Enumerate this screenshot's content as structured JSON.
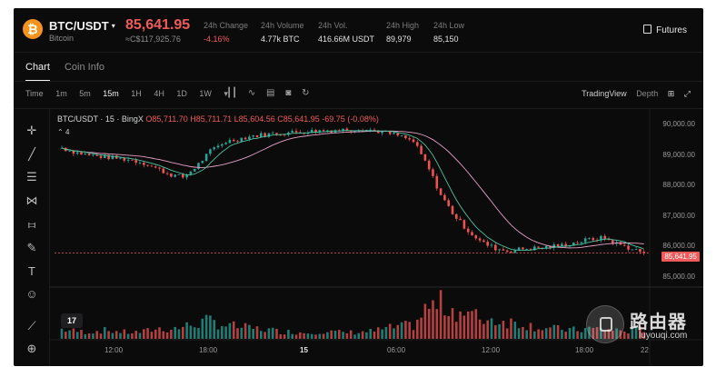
{
  "header": {
    "coin_icon": "bitcoin-icon",
    "coin_symbol": "₿",
    "pair": "BTC/USDT",
    "pair_caret": "▾",
    "pair_name": "Bitcoin",
    "price": "85,641.95",
    "price_cny": "≈C$117,925.76",
    "stats": [
      {
        "label": "24h Change",
        "value": "-4.16%",
        "negative": true
      },
      {
        "label": "24h Volume",
        "value": "4.77k BTC",
        "negative": false
      },
      {
        "label": "24h Vol.",
        "value": "416.66M USDT",
        "negative": false
      },
      {
        "label": "24h High",
        "value": "89,979",
        "negative": false
      },
      {
        "label": "24h Low",
        "value": "85,150",
        "negative": false
      }
    ],
    "futures_label": "Futures"
  },
  "tabs": [
    {
      "label": "Chart",
      "active": true
    },
    {
      "label": "Coin Info",
      "active": false
    }
  ],
  "toolbar": {
    "intervals": [
      "Time",
      "1m",
      "5m",
      "15m",
      "1H",
      "4H",
      "1D",
      "1W",
      "▾"
    ],
    "active_interval": "15m",
    "tradingview_label": "TradingView",
    "depth_label": "Depth"
  },
  "chart_data": {
    "type": "candlestick",
    "legend": {
      "symbol": "BTC/USDT · 15 · BingX",
      "open": "O85,711.70",
      "high": "H85,711.71",
      "low": "L85,604.56",
      "close": "C85,641.95",
      "change": "-69.75 (-0.08%)"
    },
    "indicator_label": "4",
    "y_ticks": [
      "90,000.00",
      "89,000.00",
      "88,000.00",
      "87,000.00",
      "86,000.00",
      "85,000.00"
    ],
    "y_values": [
      90000,
      89000,
      88000,
      87000,
      86000,
      85000
    ],
    "last_price": "85,641.95",
    "x_ticks": [
      {
        "label": "12:00",
        "bold": false
      },
      {
        "label": "18:00",
        "bold": false
      },
      {
        "label": "15",
        "bold": true
      },
      {
        "label": "06:00",
        "bold": false
      },
      {
        "label": "12:00",
        "bold": false
      },
      {
        "label": "18:00",
        "bold": false
      },
      {
        "label": "22",
        "bold": false
      }
    ],
    "price_path": [
      89200,
      89050,
      88950,
      88900,
      88850,
      88800,
      88700,
      88500,
      88300,
      88200,
      88600,
      89100,
      89400,
      89500,
      89600,
      89650,
      89700,
      89720,
      89750,
      89780,
      89800,
      89820,
      89830,
      89800,
      89700,
      89600,
      89400,
      88600,
      87600,
      86900,
      86400,
      86000,
      85800,
      85700,
      85780,
      85800,
      85850,
      85900,
      86000,
      86100,
      86150,
      85950,
      85800,
      85641.95
    ],
    "volume_path": [
      0.28,
      0.22,
      0.2,
      0.25,
      0.22,
      0.18,
      0.2,
      0.3,
      0.28,
      0.35,
      0.45,
      0.52,
      0.4,
      0.35,
      0.3,
      0.28,
      0.22,
      0.2,
      0.18,
      0.22,
      0.2,
      0.18,
      0.2,
      0.22,
      0.3,
      0.35,
      0.4,
      0.9,
      1.0,
      0.85,
      0.7,
      0.6,
      0.55,
      0.5,
      0.45,
      0.35,
      0.3,
      0.28,
      0.25,
      0.3,
      0.28,
      0.25,
      0.22,
      0.3
    ],
    "colors": {
      "up": "#26a69a",
      "down": "#ef5350",
      "ma_fast": "#4fc3a1",
      "ma_slow": "#e8a0c8"
    }
  },
  "watermark": {
    "text": "路由器",
    "sub": "luyouqi.com"
  },
  "tv_logo": "17"
}
